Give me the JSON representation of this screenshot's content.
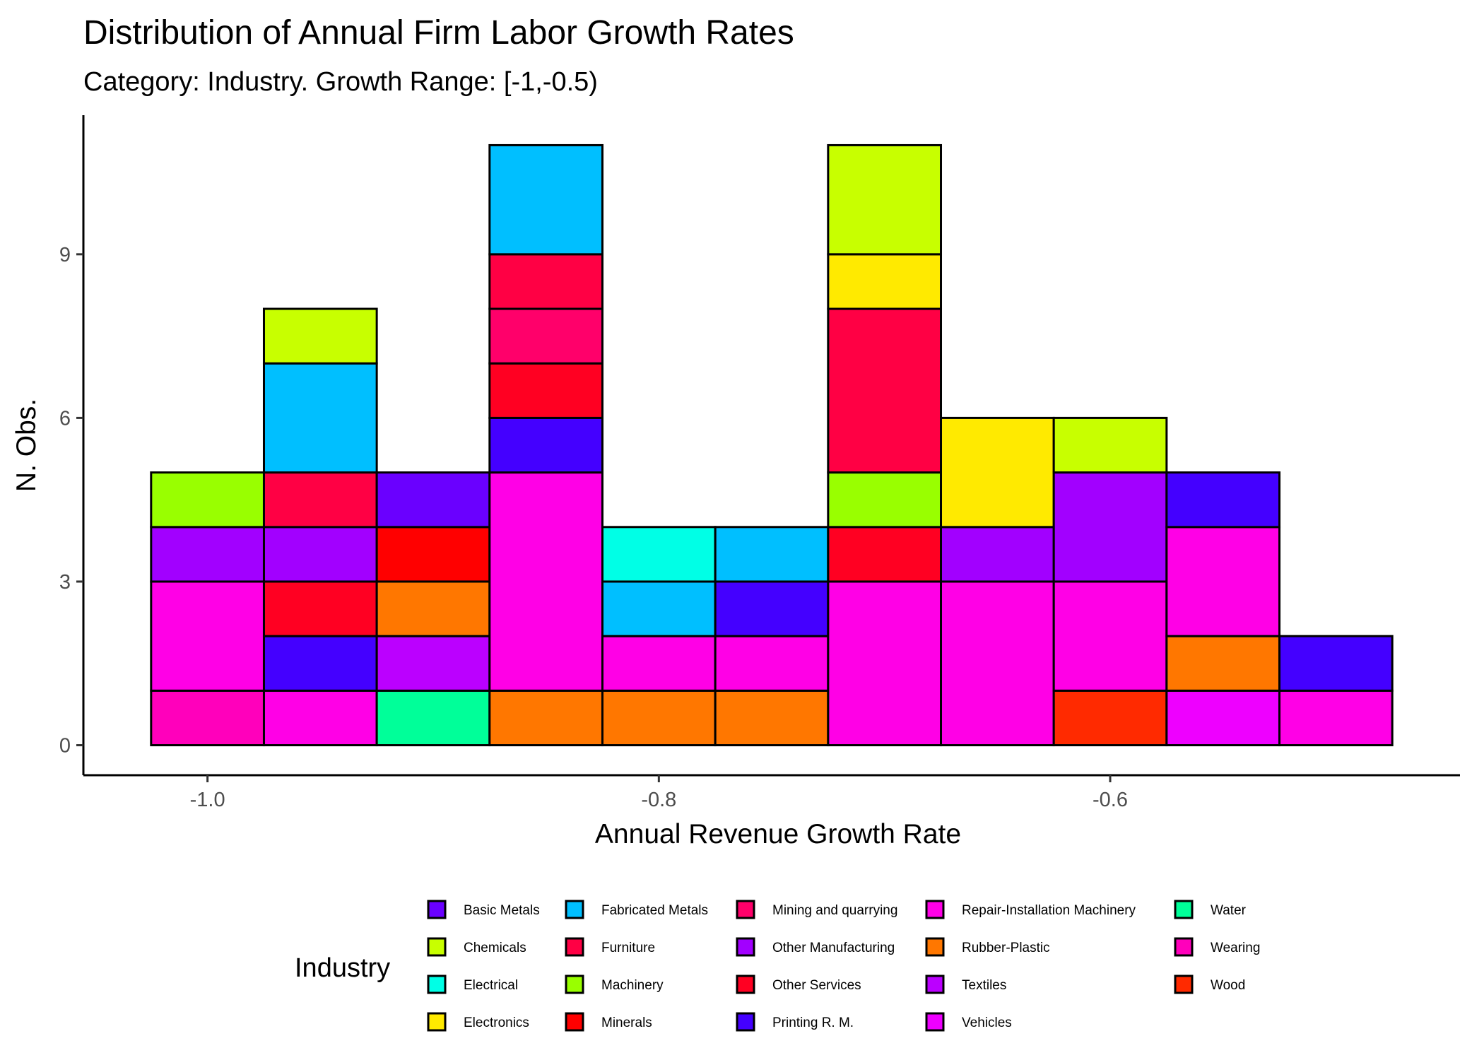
{
  "chart_data": {
    "type": "bar",
    "stacked": true,
    "title": "Distribution of Annual Firm Labor Growth Rates",
    "subtitle": "Category: Industry. Growth Range: [-1,-0.5)",
    "xlabel": "Annual Revenue Growth Rate",
    "ylabel": "N. Obs.",
    "bin_width": 0.05,
    "xlim": [
      -1.055,
      -0.445
    ],
    "ylim": [
      -0.55,
      11.55
    ],
    "x_ticks": [
      -1.0,
      -0.8,
      -0.6
    ],
    "x_tick_labels": [
      "-1.0",
      "-0.8",
      "-0.6"
    ],
    "y_ticks": [
      0,
      3,
      6,
      9
    ],
    "y_tick_labels": [
      "0",
      "3",
      "6",
      "9"
    ],
    "grid": false,
    "legend_title": "Industry",
    "legend_position": "bottom",
    "industries": [
      {
        "name": "Basic Metals",
        "color": "#6A00FF"
      },
      {
        "name": "Chemicals",
        "color": "#C8FF00"
      },
      {
        "name": "Electrical",
        "color": "#00FFE6"
      },
      {
        "name": "Electronics",
        "color": "#FFEA00"
      },
      {
        "name": "Fabricated Metals",
        "color": "#00BFFF"
      },
      {
        "name": "Furniture",
        "color": "#FF0044"
      },
      {
        "name": "Machinery",
        "color": "#99FF00"
      },
      {
        "name": "Minerals",
        "color": "#FF0000"
      },
      {
        "name": "Mining and quarrying",
        "color": "#FF006A"
      },
      {
        "name": "Other Manufacturing",
        "color": "#A200FF"
      },
      {
        "name": "Other Services",
        "color": "#FF0022"
      },
      {
        "name": "Printing R. M.",
        "color": "#4400FF"
      },
      {
        "name": "Repair-Installation Machinery",
        "color": "#FF00E6"
      },
      {
        "name": "Rubber-Plastic",
        "color": "#FF7700"
      },
      {
        "name": "Textiles",
        "color": "#BB00FF"
      },
      {
        "name": "Vehicles",
        "color": "#EE00FF"
      },
      {
        "name": "Water",
        "color": "#00FF99"
      },
      {
        "name": "Wearing",
        "color": "#FF00BB"
      },
      {
        "name": "Wood",
        "color": "#FF2A00"
      }
    ],
    "bins": [
      {
        "x": -1.0,
        "segments": [
          {
            "industry": "Wearing",
            "count": 1
          },
          {
            "industry": "Repair-Installation Machinery",
            "count": 2
          },
          {
            "industry": "Other Manufacturing",
            "count": 1
          },
          {
            "industry": "Machinery",
            "count": 1
          }
        ]
      },
      {
        "x": -0.95,
        "segments": [
          {
            "industry": "Repair-Installation Machinery",
            "count": 1
          },
          {
            "industry": "Printing R. M.",
            "count": 1
          },
          {
            "industry": "Other Services",
            "count": 1
          },
          {
            "industry": "Other Manufacturing",
            "count": 1
          },
          {
            "industry": "Furniture",
            "count": 1
          },
          {
            "industry": "Fabricated Metals",
            "count": 2
          },
          {
            "industry": "Chemicals",
            "count": 1
          }
        ]
      },
      {
        "x": -0.9,
        "segments": [
          {
            "industry": "Water",
            "count": 1
          },
          {
            "industry": "Textiles",
            "count": 1
          },
          {
            "industry": "Rubber-Plastic",
            "count": 1
          },
          {
            "industry": "Minerals",
            "count": 1
          },
          {
            "industry": "Basic Metals",
            "count": 1
          }
        ]
      },
      {
        "x": -0.85,
        "segments": [
          {
            "industry": "Rubber-Plastic",
            "count": 1
          },
          {
            "industry": "Repair-Installation Machinery",
            "count": 4
          },
          {
            "industry": "Printing R. M.",
            "count": 1
          },
          {
            "industry": "Other Services",
            "count": 1
          },
          {
            "industry": "Mining and quarrying",
            "count": 1
          },
          {
            "industry": "Furniture",
            "count": 1
          },
          {
            "industry": "Fabricated Metals",
            "count": 2
          }
        ]
      },
      {
        "x": -0.8,
        "segments": [
          {
            "industry": "Rubber-Plastic",
            "count": 1
          },
          {
            "industry": "Repair-Installation Machinery",
            "count": 1
          },
          {
            "industry": "Fabricated Metals",
            "count": 1
          },
          {
            "industry": "Electrical",
            "count": 1
          }
        ]
      },
      {
        "x": -0.75,
        "segments": [
          {
            "industry": "Rubber-Plastic",
            "count": 1
          },
          {
            "industry": "Repair-Installation Machinery",
            "count": 1
          },
          {
            "industry": "Printing R. M.",
            "count": 1
          },
          {
            "industry": "Fabricated Metals",
            "count": 1
          }
        ]
      },
      {
        "x": -0.7,
        "segments": [
          {
            "industry": "Repair-Installation Machinery",
            "count": 3
          },
          {
            "industry": "Other Services",
            "count": 1
          },
          {
            "industry": "Machinery",
            "count": 1
          },
          {
            "industry": "Furniture",
            "count": 3
          },
          {
            "industry": "Electronics",
            "count": 1
          },
          {
            "industry": "Chemicals",
            "count": 2
          }
        ]
      },
      {
        "x": -0.65,
        "segments": [
          {
            "industry": "Repair-Installation Machinery",
            "count": 3
          },
          {
            "industry": "Other Manufacturing",
            "count": 1
          },
          {
            "industry": "Electronics",
            "count": 2
          }
        ]
      },
      {
        "x": -0.6,
        "segments": [
          {
            "industry": "Wood",
            "count": 1
          },
          {
            "industry": "Repair-Installation Machinery",
            "count": 2
          },
          {
            "industry": "Other Manufacturing",
            "count": 2
          },
          {
            "industry": "Chemicals",
            "count": 1
          }
        ]
      },
      {
        "x": -0.55,
        "segments": [
          {
            "industry": "Vehicles",
            "count": 1
          },
          {
            "industry": "Rubber-Plastic",
            "count": 1
          },
          {
            "industry": "Repair-Installation Machinery",
            "count": 2
          },
          {
            "industry": "Printing R. M.",
            "count": 1
          }
        ]
      },
      {
        "x": -0.5,
        "segments": [
          {
            "industry": "Repair-Installation Machinery",
            "count": 1
          },
          {
            "industry": "Printing R. M.",
            "count": 1
          }
        ]
      }
    ]
  }
}
